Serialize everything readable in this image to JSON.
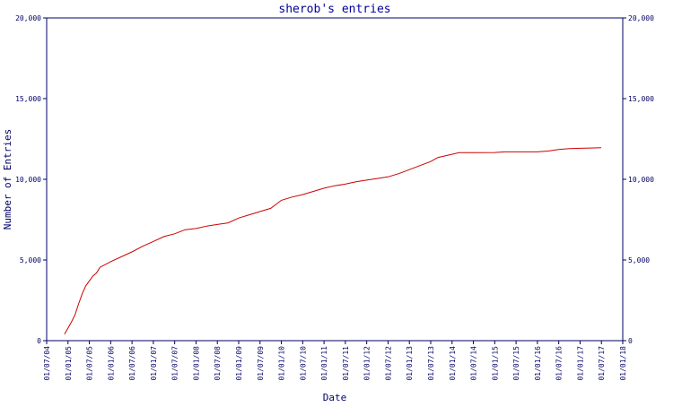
{
  "chart_data": {
    "type": "line",
    "title": "sherob's entries",
    "xlabel": "Date",
    "ylabel": "Number of Entries",
    "x_tick_labels": [
      "01/07/04",
      "01/01/05",
      "01/07/05",
      "01/01/06",
      "01/07/06",
      "01/01/07",
      "01/07/07",
      "01/01/08",
      "01/07/08",
      "01/01/09",
      "01/07/09",
      "01/01/10",
      "01/07/10",
      "01/01/11",
      "01/07/11",
      "01/01/12",
      "01/07/12",
      "01/01/13",
      "01/07/13",
      "01/01/14",
      "01/07/14",
      "01/01/15",
      "01/07/15",
      "01/01/16",
      "01/07/16",
      "01/01/17",
      "01/07/17",
      "01/01/18"
    ],
    "y_ticks": [
      0,
      5000,
      10000,
      15000,
      20000
    ],
    "y_tick_labels": [
      "0",
      "5,000",
      "10,000",
      "15,000",
      "20,000"
    ],
    "ylim": [
      0,
      20000
    ],
    "xlim": [
      "2004-07-01",
      "2018-01-01"
    ],
    "grid": false,
    "colors": {
      "line": "#cc0000",
      "axis": "#000066",
      "title": "#000099"
    },
    "series": [
      {
        "points": [
          [
            "2004-12-01",
            400
          ],
          [
            "2005-01-01",
            800
          ],
          [
            "2005-02-01",
            1200
          ],
          [
            "2005-03-01",
            1600
          ],
          [
            "2005-04-01",
            2300
          ],
          [
            "2005-05-01",
            2900
          ],
          [
            "2005-06-01",
            3400
          ],
          [
            "2005-07-01",
            3700
          ],
          [
            "2005-08-01",
            4000
          ],
          [
            "2005-09-01",
            4200
          ],
          [
            "2005-10-01",
            4550
          ],
          [
            "2006-01-01",
            4900
          ],
          [
            "2006-07-01",
            5500
          ],
          [
            "2006-10-01",
            5850
          ],
          [
            "2007-01-01",
            6150
          ],
          [
            "2007-04-01",
            6450
          ],
          [
            "2007-07-01",
            6620
          ],
          [
            "2007-10-01",
            6880
          ],
          [
            "2008-01-01",
            6950
          ],
          [
            "2008-04-01",
            7100
          ],
          [
            "2008-07-01",
            7200
          ],
          [
            "2008-10-01",
            7300
          ],
          [
            "2009-01-01",
            7600
          ],
          [
            "2009-04-01",
            7800
          ],
          [
            "2009-07-01",
            8000
          ],
          [
            "2009-10-01",
            8200
          ],
          [
            "2010-01-01",
            8700
          ],
          [
            "2010-04-01",
            8900
          ],
          [
            "2010-07-01",
            9050
          ],
          [
            "2010-10-01",
            9250
          ],
          [
            "2011-01-01",
            9450
          ],
          [
            "2011-04-01",
            9600
          ],
          [
            "2011-07-01",
            9700
          ],
          [
            "2011-10-01",
            9850
          ],
          [
            "2012-01-01",
            9950
          ],
          [
            "2012-04-01",
            10050
          ],
          [
            "2012-07-01",
            10150
          ],
          [
            "2012-10-01",
            10350
          ],
          [
            "2013-01-01",
            10600
          ],
          [
            "2013-04-01",
            10850
          ],
          [
            "2013-07-01",
            11100
          ],
          [
            "2013-09-01",
            11350
          ],
          [
            "2013-12-01",
            11500
          ],
          [
            "2014-03-01",
            11650
          ],
          [
            "2014-07-01",
            11650
          ],
          [
            "2015-01-01",
            11660
          ],
          [
            "2015-04-01",
            11700
          ],
          [
            "2015-07-01",
            11700
          ],
          [
            "2016-01-01",
            11700
          ],
          [
            "2016-04-01",
            11750
          ],
          [
            "2016-07-01",
            11850
          ],
          [
            "2016-10-01",
            11900
          ],
          [
            "2017-01-01",
            11920
          ],
          [
            "2017-04-01",
            11940
          ],
          [
            "2017-07-01",
            11960
          ]
        ]
      }
    ]
  }
}
